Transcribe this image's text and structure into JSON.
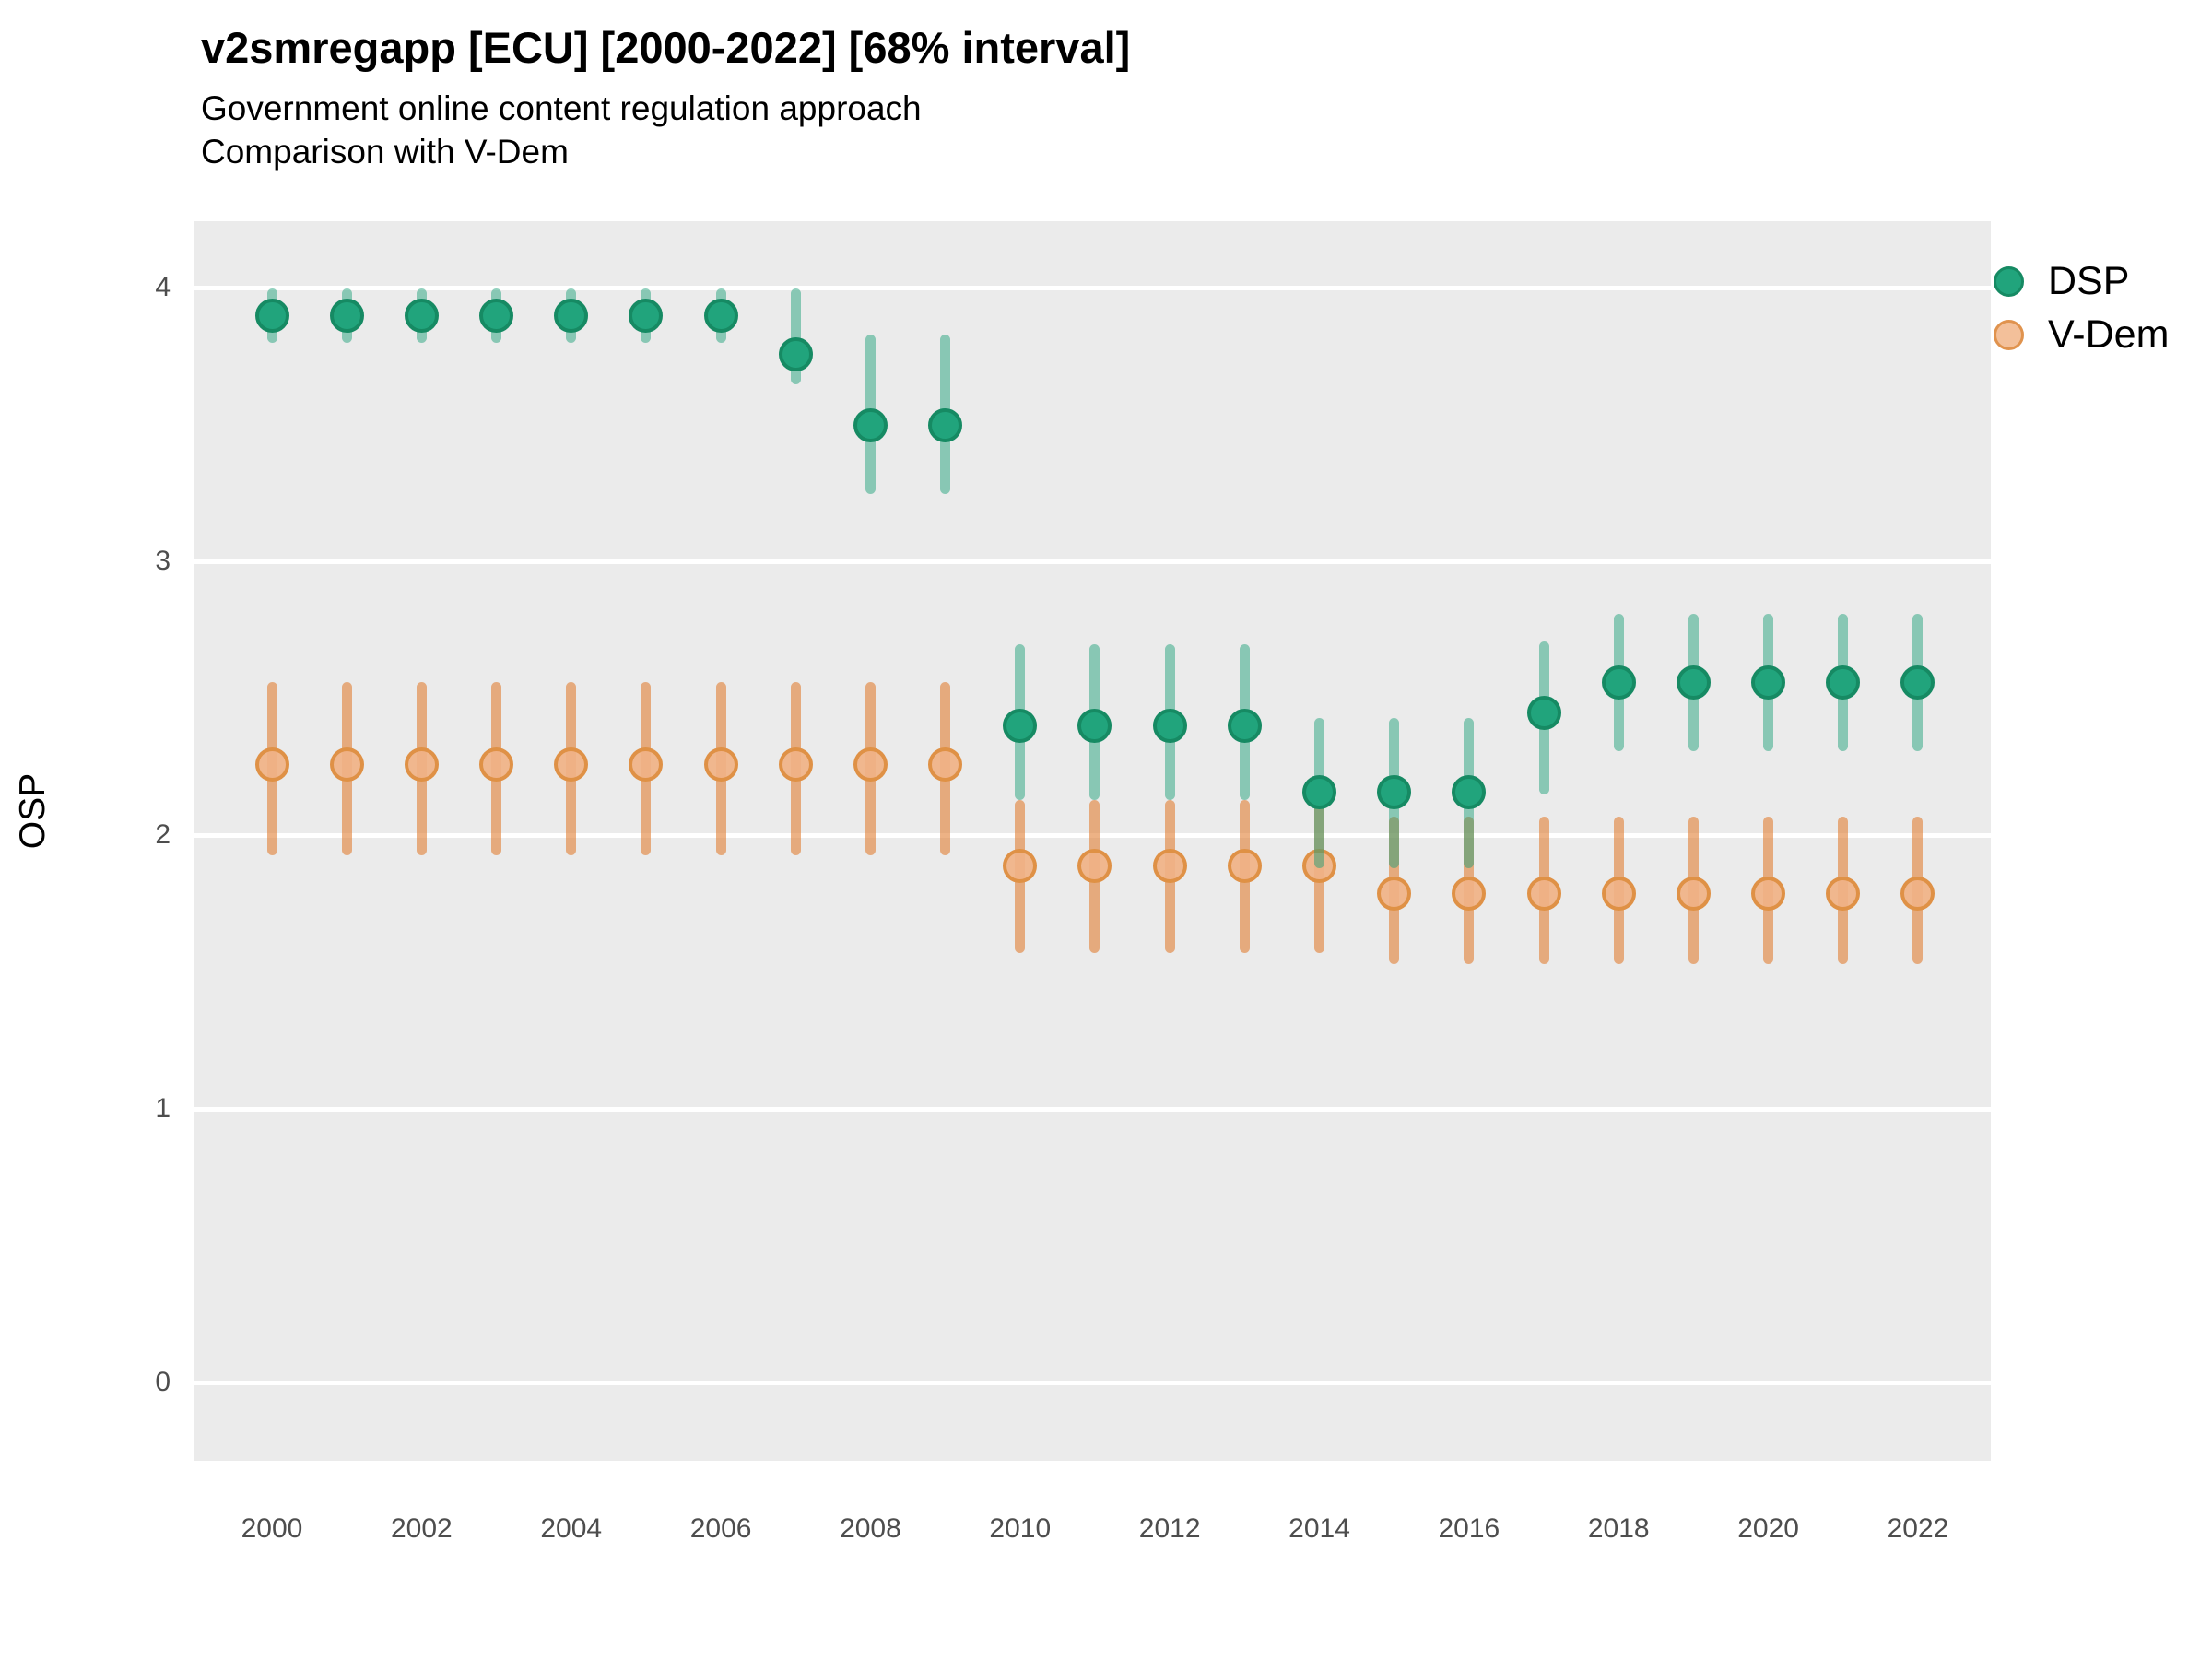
{
  "title": "v2smregapp [ECU] [2000-2022] [68% interval]",
  "subtitle_line1": "Government online content regulation approach",
  "subtitle_line2": "Comparison with V-Dem",
  "y_axis_label": "OSP",
  "legend": {
    "items": [
      {
        "label": "DSP",
        "fill": "#21a47c",
        "ring": "#168a63"
      },
      {
        "label": "V-Dem",
        "fill": "#f3c09a",
        "ring": "#e0934e"
      }
    ]
  },
  "colors": {
    "panel_bg": "#ebebeb",
    "gridline": "#ffffff",
    "tick_text": "#4d4d4d",
    "title_text": "#000000",
    "dsp_marker_fill": "#21a47c",
    "dsp_marker_ring": "#168a63",
    "dsp_whisker": "rgba(27,158,119,0.48)",
    "vdem_marker_fill": "rgba(240,178,133,0.92)",
    "vdem_marker_ring": "rgba(221,143,66,0.95)",
    "vdem_whisker": "rgba(224,122,45,0.58)"
  },
  "chart_data": {
    "type": "pointrange",
    "title": "v2smregapp [ECU] [2000-2022] [68% interval]",
    "subtitle": [
      "Government online content regulation approach",
      "Comparison with V-Dem"
    ],
    "xlabel": "",
    "ylabel": "OSP",
    "interval": "68%",
    "grid": "on",
    "legend_position": "right",
    "ylim": [
      -0.28,
      4.25
    ],
    "y_ticks": [
      4,
      3,
      2,
      1,
      0
    ],
    "x_ticks": [
      2000,
      2002,
      2004,
      2006,
      2008,
      2010,
      2012,
      2014,
      2016,
      2018,
      2020,
      2022
    ],
    "x": [
      2000,
      2001,
      2002,
      2003,
      2004,
      2005,
      2006,
      2007,
      2008,
      2009,
      2010,
      2011,
      2012,
      2013,
      2014,
      2015,
      2016,
      2017,
      2018,
      2019,
      2020,
      2021,
      2022
    ],
    "series": [
      {
        "name": "DSP",
        "est": [
          3.9,
          3.9,
          3.9,
          3.9,
          3.9,
          3.9,
          3.9,
          3.76,
          3.5,
          3.5,
          2.4,
          2.4,
          2.4,
          2.4,
          2.16,
          2.16,
          2.16,
          2.45,
          2.56,
          2.56,
          2.56,
          2.56,
          2.56
        ],
        "lo": [
          3.8,
          3.8,
          3.8,
          3.8,
          3.8,
          3.8,
          3.8,
          3.65,
          3.25,
          3.25,
          2.13,
          2.13,
          2.13,
          2.13,
          1.88,
          1.88,
          1.88,
          2.15,
          2.31,
          2.31,
          2.31,
          2.31,
          2.31
        ],
        "hi": [
          4.0,
          4.0,
          4.0,
          4.0,
          4.0,
          4.0,
          4.0,
          4.0,
          3.83,
          3.83,
          2.7,
          2.7,
          2.7,
          2.7,
          2.43,
          2.43,
          2.43,
          2.71,
          2.81,
          2.81,
          2.81,
          2.81,
          2.81
        ]
      },
      {
        "name": "V-Dem",
        "est": [
          2.26,
          2.26,
          2.26,
          2.26,
          2.26,
          2.26,
          2.26,
          2.26,
          2.26,
          2.26,
          1.89,
          1.89,
          1.89,
          1.89,
          1.89,
          1.79,
          1.79,
          1.79,
          1.79,
          1.79,
          1.79,
          1.79,
          1.79
        ],
        "lo": [
          1.93,
          1.93,
          1.93,
          1.93,
          1.93,
          1.93,
          1.93,
          1.93,
          1.93,
          1.93,
          1.57,
          1.57,
          1.57,
          1.57,
          1.57,
          1.53,
          1.53,
          1.53,
          1.53,
          1.53,
          1.53,
          1.53,
          1.53
        ],
        "hi": [
          2.56,
          2.56,
          2.56,
          2.56,
          2.56,
          2.56,
          2.56,
          2.56,
          2.56,
          2.56,
          2.13,
          2.13,
          2.13,
          2.13,
          2.13,
          2.07,
          2.07,
          2.07,
          2.07,
          2.07,
          2.07,
          2.07,
          2.07
        ]
      }
    ]
  }
}
